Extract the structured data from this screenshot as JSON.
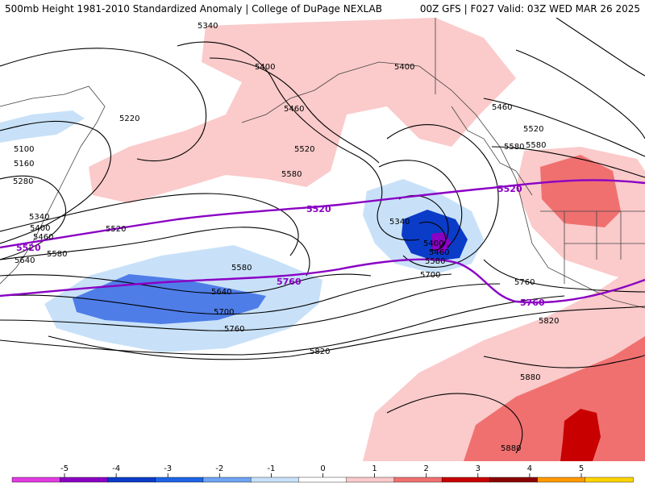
{
  "header": {
    "title": "500mb Height 1981-2010 Standardized Anomaly | College of DuPage NEXLAB",
    "run_info": "00Z GFS | F027 Valid: 03Z WED MAR 26 2025"
  },
  "colors": {
    "pos_1": "#fbcaca",
    "pos_2": "#f07070",
    "pos_3": "#c80000",
    "neg_1": "#c8e1f8",
    "neg_2": "#4f7de8",
    "neg_3": "#0a3cc8",
    "neg_4": "#8a00c4",
    "contour": "#000000",
    "highlight_contour": "#8a00c4",
    "land_border": "#444444"
  },
  "contour_labels": [
    {
      "id": "c5340-a",
      "text": "5340"
    },
    {
      "id": "c5400-a",
      "text": "5400"
    },
    {
      "id": "c5400-b",
      "text": "5400"
    },
    {
      "id": "c5460-a",
      "text": "5460"
    },
    {
      "id": "c5460-b",
      "text": "5460"
    },
    {
      "id": "c5520-a",
      "text": "5520"
    },
    {
      "id": "c5220-a",
      "text": "5220"
    },
    {
      "id": "c5100-a",
      "text": "5100"
    },
    {
      "id": "c5160-a",
      "text": "5160"
    },
    {
      "id": "c5280-a",
      "text": "5280"
    },
    {
      "id": "c5340-b",
      "text": "5340"
    },
    {
      "id": "c5400-c",
      "text": "5400"
    },
    {
      "id": "c5460-c",
      "text": "5460"
    },
    {
      "id": "c5520-b",
      "text": "5520"
    },
    {
      "id": "c5580-a",
      "text": "5580"
    },
    {
      "id": "c5640-a",
      "text": "5640"
    },
    {
      "id": "c5580-b",
      "text": "5580"
    },
    {
      "id": "c5580-c",
      "text": "5580"
    },
    {
      "id": "c5580-d",
      "text": "5580"
    },
    {
      "id": "c5640-b",
      "text": "5640"
    },
    {
      "id": "c5700-a",
      "text": "5700"
    },
    {
      "id": "c5760-a",
      "text": "5760"
    },
    {
      "id": "c5820-a",
      "text": "5820"
    },
    {
      "id": "c5340-c",
      "text": "5340"
    },
    {
      "id": "c5400-d",
      "text": "5400"
    },
    {
      "id": "c5460-d",
      "text": "5460"
    },
    {
      "id": "c5580-e",
      "text": "5580"
    },
    {
      "id": "c5700-b",
      "text": "5700"
    },
    {
      "id": "c5520-c",
      "text": "5520"
    },
    {
      "id": "c5580-f",
      "text": "5580"
    },
    {
      "id": "c5760-b",
      "text": "5760"
    },
    {
      "id": "c5820-b",
      "text": "5820"
    },
    {
      "id": "c5880-a",
      "text": "5880"
    },
    {
      "id": "c5880-b",
      "text": "5880"
    }
  ],
  "highlight_labels": [
    {
      "id": "h5520-a",
      "text": "5520"
    },
    {
      "id": "h5520-b",
      "text": "5520"
    },
    {
      "id": "h5520-c",
      "text": "5520"
    },
    {
      "id": "h5760-a",
      "text": "5760"
    },
    {
      "id": "h5760-b",
      "text": "5760"
    }
  ],
  "legend": {
    "ticks": [
      "-5",
      "-4",
      "-3",
      "-2",
      "-1",
      "0",
      "1",
      "2",
      "3",
      "4",
      "5"
    ],
    "colors": [
      "#e23be0",
      "#8a00c4",
      "#0a3cc8",
      "#1e64e6",
      "#6fa4f2",
      "#c8e1f8",
      "#ffffff",
      "#fbcaca",
      "#f07070",
      "#c80000",
      "#8a0000",
      "#ff9a00",
      "#ffd400"
    ]
  }
}
